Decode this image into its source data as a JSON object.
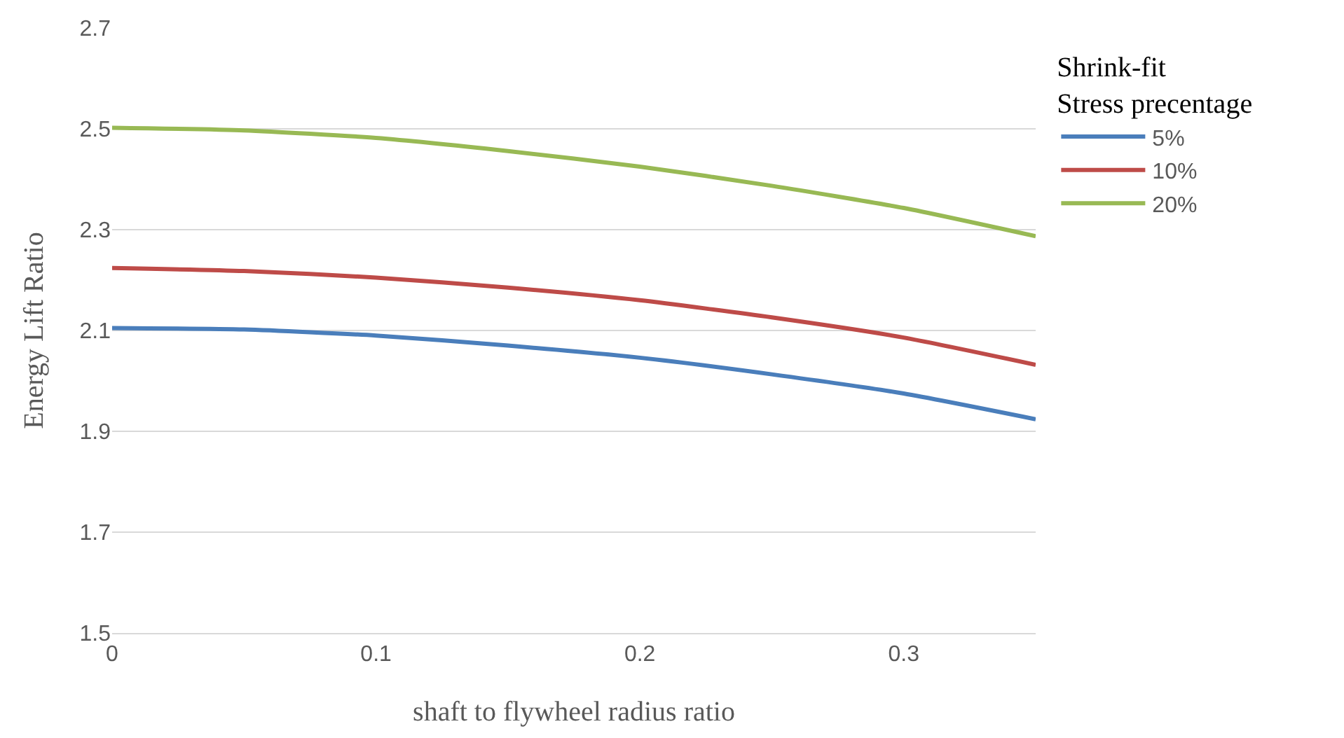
{
  "chart_data": {
    "type": "line",
    "xlabel": "shaft to flywheel radius ratio",
    "ylabel": "Energy Lift Ratio",
    "legend_title": "Shrink-fit\nStress precentage",
    "x": [
      0,
      0.05,
      0.1,
      0.15,
      0.2,
      0.25,
      0.3,
      0.35
    ],
    "series": [
      {
        "name": "5%",
        "color": "#4a7ebb",
        "values": [
          2.105,
          2.102,
          2.09,
          2.07,
          2.046,
          2.013,
          1.975,
          1.924
        ]
      },
      {
        "name": "10%",
        "color": "#be4b48",
        "values": [
          2.224,
          2.218,
          2.205,
          2.185,
          2.16,
          2.126,
          2.086,
          2.032
        ]
      },
      {
        "name": "20%",
        "color": "#98b954",
        "values": [
          2.502,
          2.497,
          2.482,
          2.456,
          2.425,
          2.387,
          2.343,
          2.287
        ]
      }
    ],
    "xlim": [
      0,
      0.35
    ],
    "xticks": [
      0,
      0.1,
      0.2,
      0.3
    ],
    "ylim": [
      1.5,
      2.7
    ],
    "yticks": [
      1.5,
      1.7,
      1.9,
      2.1,
      2.3,
      2.5,
      2.7
    ],
    "grid": "y",
    "legend": "right",
    "marker": "none",
    "line_style": "solid"
  }
}
